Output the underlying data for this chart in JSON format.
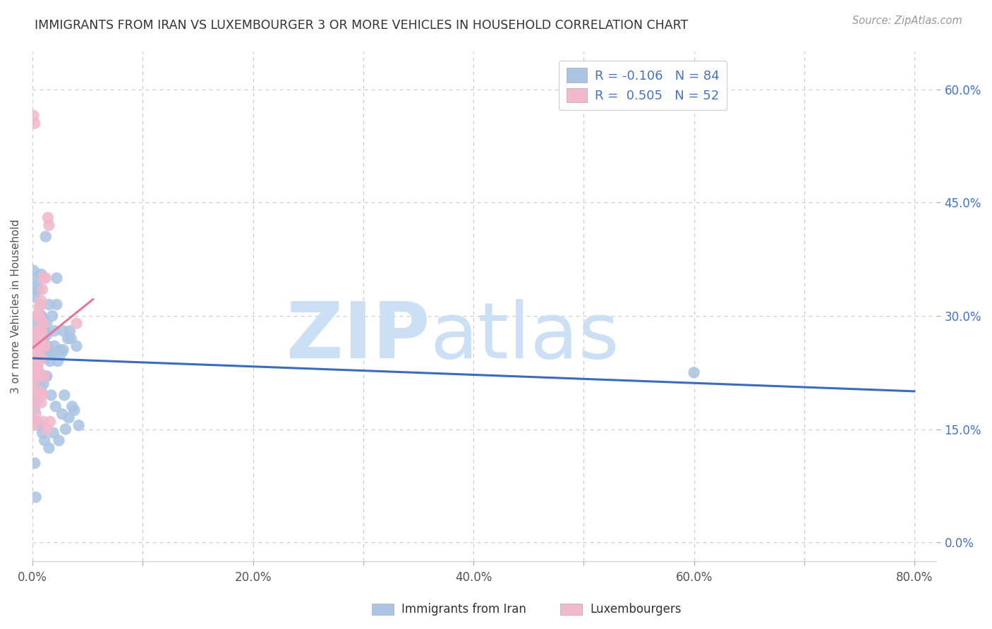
{
  "title": "IMMIGRANTS FROM IRAN VS LUXEMBOURGER 3 OR MORE VEHICLES IN HOUSEHOLD CORRELATION CHART",
  "source": "Source: ZipAtlas.com",
  "ylabel": "3 or more Vehicles in Household",
  "iran_R": -0.106,
  "iran_N": 84,
  "lux_R": 0.505,
  "lux_N": 52,
  "iran_color": "#aac4e2",
  "lux_color": "#f2b8cb",
  "iran_line_color": "#3a6bbf",
  "lux_line_color": "#e8729a",
  "xlim": [
    0.0,
    0.82
  ],
  "ylim": [
    -0.025,
    0.65
  ],
  "xticks": [
    0.0,
    0.1,
    0.2,
    0.3,
    0.4,
    0.5,
    0.6,
    0.7,
    0.8
  ],
  "xticklabels": [
    "0.0%",
    "",
    "20.0%",
    "",
    "40.0%",
    "",
    "60.0%",
    "",
    "80.0%"
  ],
  "yticks": [
    0.0,
    0.15,
    0.3,
    0.45,
    0.6
  ],
  "yticklabels_right": [
    "0.0%",
    "15.0%",
    "30.0%",
    "45.0%",
    "60.0%"
  ],
  "background_color": "#ffffff",
  "watermark_zip": "ZIP",
  "watermark_atlas": "atlas",
  "watermark_color": "#cce0f5",
  "grid_color": "#cccccc",
  "legend_label_iran": "R = -0.106   N = 84",
  "legend_label_lux": "R =  0.505   N = 52",
  "bottom_label_iran": "Immigrants from Iran",
  "bottom_label_lux": "Luxembourgers",
  "iran_x": [
    0.005,
    0.003,
    0.004,
    0.006,
    0.007,
    0.008,
    0.009,
    0.01,
    0.011,
    0.012,
    0.003,
    0.005,
    0.006,
    0.008,
    0.01,
    0.013,
    0.015,
    0.018,
    0.02,
    0.025,
    0.003,
    0.004,
    0.007,
    0.009,
    0.011,
    0.014,
    0.017,
    0.022,
    0.028,
    0.035,
    0.002,
    0.004,
    0.006,
    0.008,
    0.012,
    0.016,
    0.02,
    0.026,
    0.032,
    0.04,
    0.003,
    0.005,
    0.007,
    0.01,
    0.013,
    0.017,
    0.021,
    0.027,
    0.033,
    0.042,
    0.002,
    0.004,
    0.006,
    0.009,
    0.011,
    0.015,
    0.019,
    0.024,
    0.03,
    0.038,
    0.002,
    0.003,
    0.005,
    0.008,
    0.01,
    0.013,
    0.018,
    0.023,
    0.029,
    0.036,
    0.002,
    0.003,
    0.004,
    0.006,
    0.008,
    0.012,
    0.022,
    0.028,
    0.034,
    0.6,
    0.002,
    0.003,
    0.001,
    0.001
  ],
  "iran_y": [
    0.245,
    0.245,
    0.235,
    0.225,
    0.255,
    0.3,
    0.275,
    0.27,
    0.245,
    0.245,
    0.265,
    0.27,
    0.295,
    0.3,
    0.295,
    0.275,
    0.315,
    0.3,
    0.28,
    0.255,
    0.29,
    0.3,
    0.315,
    0.29,
    0.28,
    0.26,
    0.25,
    0.315,
    0.28,
    0.27,
    0.23,
    0.22,
    0.21,
    0.2,
    0.22,
    0.24,
    0.26,
    0.25,
    0.27,
    0.26,
    0.185,
    0.19,
    0.2,
    0.21,
    0.22,
    0.195,
    0.18,
    0.17,
    0.165,
    0.155,
    0.175,
    0.16,
    0.155,
    0.145,
    0.135,
    0.125,
    0.145,
    0.135,
    0.15,
    0.175,
    0.195,
    0.2,
    0.25,
    0.26,
    0.28,
    0.29,
    0.25,
    0.24,
    0.195,
    0.18,
    0.325,
    0.335,
    0.34,
    0.335,
    0.355,
    0.405,
    0.35,
    0.255,
    0.28,
    0.225,
    0.105,
    0.06,
    0.35,
    0.36
  ],
  "lux_x": [
    0.002,
    0.003,
    0.004,
    0.005,
    0.006,
    0.007,
    0.008,
    0.009,
    0.01,
    0.011,
    0.002,
    0.003,
    0.004,
    0.005,
    0.006,
    0.007,
    0.008,
    0.009,
    0.011,
    0.001,
    0.002,
    0.003,
    0.004,
    0.005,
    0.006,
    0.008,
    0.01,
    0.012,
    0.015,
    0.001,
    0.002,
    0.003,
    0.004,
    0.005,
    0.006,
    0.007,
    0.009,
    0.011,
    0.014,
    0.001,
    0.002,
    0.003,
    0.004,
    0.005,
    0.006,
    0.008,
    0.01,
    0.013,
    0.016,
    0.001,
    0.002,
    0.04
  ],
  "lux_y": [
    0.245,
    0.26,
    0.27,
    0.28,
    0.3,
    0.315,
    0.32,
    0.335,
    0.35,
    0.26,
    0.225,
    0.27,
    0.28,
    0.3,
    0.31,
    0.295,
    0.28,
    0.275,
    0.26,
    0.2,
    0.215,
    0.225,
    0.3,
    0.28,
    0.255,
    0.245,
    0.29,
    0.35,
    0.42,
    0.185,
    0.195,
    0.245,
    0.25,
    0.235,
    0.225,
    0.2,
    0.195,
    0.22,
    0.43,
    0.155,
    0.16,
    0.17,
    0.2,
    0.22,
    0.24,
    0.185,
    0.16,
    0.15,
    0.16,
    0.565,
    0.555,
    0.29
  ]
}
